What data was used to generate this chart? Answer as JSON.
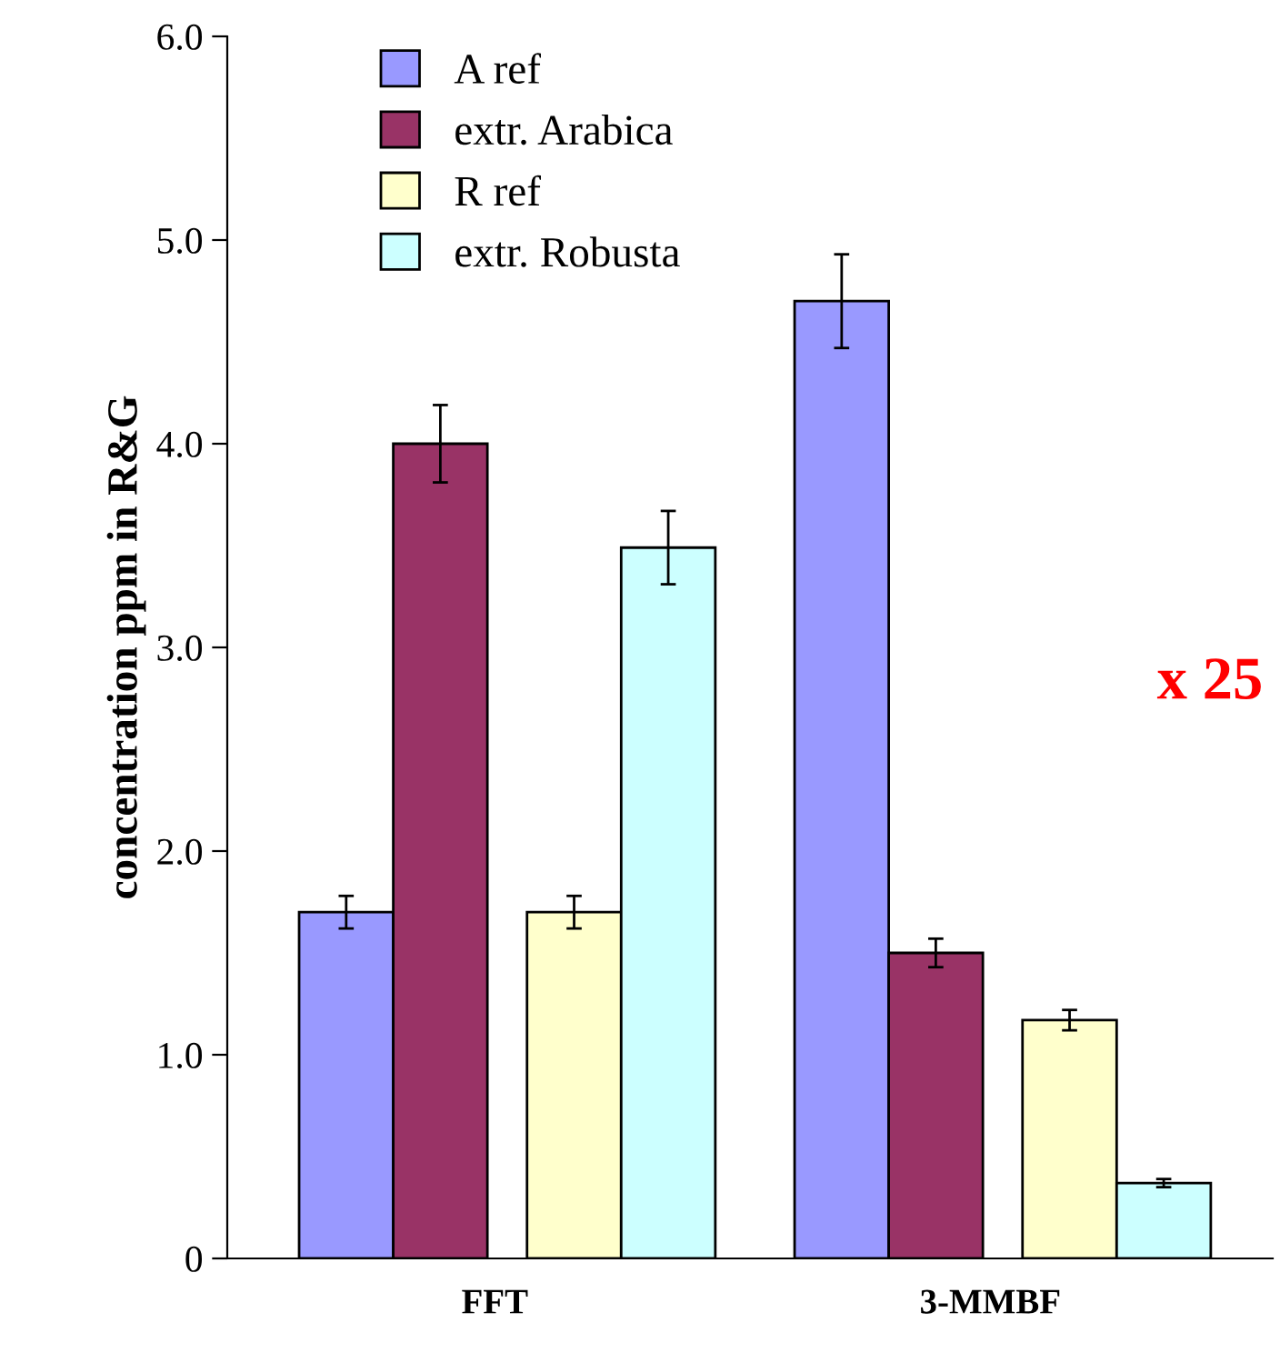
{
  "chart_data": {
    "type": "bar",
    "ylabel": "concentration ppm in R&G",
    "categories": [
      "FFT",
      "3-MMBF"
    ],
    "series": [
      {
        "name": "A ref",
        "color": "#9999ff",
        "values": [
          1.7,
          4.7
        ],
        "errors": [
          0.08,
          0.23
        ]
      },
      {
        "name": "extr. Arabica",
        "color": "#993366",
        "values": [
          4.0,
          1.5
        ],
        "errors": [
          0.19,
          0.07
        ]
      },
      {
        "name": "R ref",
        "color": "#ffffcc",
        "values": [
          1.7,
          1.17
        ],
        "errors": [
          0.08,
          0.05
        ]
      },
      {
        "name": "extr. Robusta",
        "color": "#ccffff",
        "values": [
          3.49,
          0.37
        ],
        "errors": [
          0.18,
          0.02
        ]
      }
    ],
    "ylim": [
      0,
      6
    ],
    "yticks": [
      0,
      {
        "value": 1,
        "label": "1.0"
      },
      {
        "value": 2,
        "label": "2.0"
      },
      {
        "value": 3,
        "label": "3.0"
      },
      {
        "value": 4,
        "label": "4.0"
      },
      {
        "value": 5,
        "label": "5.0"
      },
      {
        "value": 6,
        "label": "6.0"
      }
    ],
    "grid": false,
    "legend": "top left",
    "annotations": [
      "x 25"
    ]
  }
}
